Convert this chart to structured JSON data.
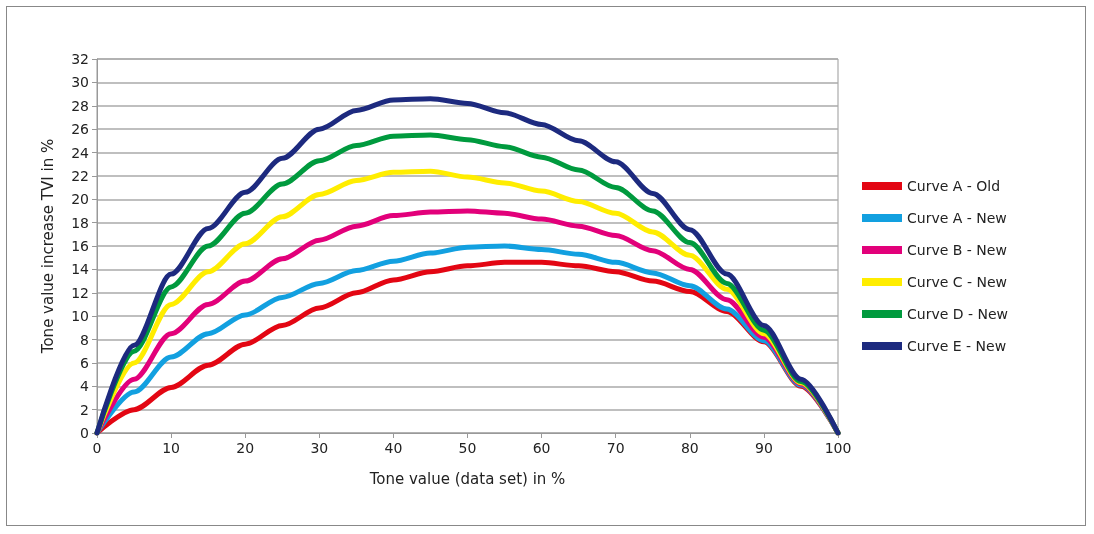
{
  "chart_data": {
    "type": "line",
    "xlabel": "Tone value (data set) in %",
    "ylabel": "Tone value increase TVI in %",
    "x": [
      0,
      5,
      10,
      15,
      20,
      25,
      30,
      35,
      40,
      45,
      50,
      55,
      60,
      65,
      70,
      75,
      80,
      85,
      90,
      95,
      100
    ],
    "series": [
      {
        "name": "Curve A - Old",
        "color": "#e30613",
        "values": [
          0,
          2,
          3.9,
          5.8,
          7.6,
          9.2,
          10.7,
          12,
          13.1,
          13.8,
          14.3,
          14.6,
          14.6,
          14.3,
          13.8,
          13,
          12.1,
          10.4,
          7.8,
          4,
          0
        ]
      },
      {
        "name": "Curve A - New",
        "color": "#12a0e0",
        "values": [
          0,
          3.5,
          6.5,
          8.5,
          10.1,
          11.6,
          12.8,
          13.9,
          14.7,
          15.4,
          15.9,
          16,
          15.7,
          15.3,
          14.6,
          13.7,
          12.6,
          10.6,
          7.9,
          4.1,
          0
        ]
      },
      {
        "name": "Curve B - New",
        "color": "#e2007a",
        "values": [
          0,
          4.6,
          8.5,
          11,
          13,
          14.9,
          16.5,
          17.7,
          18.6,
          18.9,
          19,
          18.8,
          18.3,
          17.7,
          16.9,
          15.6,
          14,
          11.4,
          8.2,
          4.2,
          0
        ]
      },
      {
        "name": "Curve C - New",
        "color": "#ffed00",
        "values": [
          0,
          6,
          11,
          13.8,
          16.2,
          18.5,
          20.4,
          21.6,
          22.3,
          22.4,
          21.9,
          21.4,
          20.7,
          19.8,
          18.8,
          17.2,
          15.2,
          12.3,
          8.5,
          4.3,
          0
        ]
      },
      {
        "name": "Curve D - New",
        "color": "#009a3e",
        "values": [
          0,
          7,
          12.5,
          16,
          18.8,
          21.3,
          23.3,
          24.6,
          25.4,
          25.5,
          25.1,
          24.5,
          23.6,
          22.5,
          21,
          19,
          16.3,
          12.8,
          8.8,
          4.4,
          0
        ]
      },
      {
        "name": "Curve E - New",
        "color": "#1d2a7f",
        "values": [
          0,
          7.5,
          13.6,
          17.5,
          20.6,
          23.5,
          26,
          27.6,
          28.5,
          28.6,
          28.2,
          27.4,
          26.4,
          25,
          23.2,
          20.5,
          17.4,
          13.6,
          9.2,
          4.6,
          0
        ]
      }
    ],
    "xlim": [
      0,
      100
    ],
    "xticks": [
      0,
      10,
      20,
      30,
      40,
      50,
      60,
      70,
      80,
      90,
      100
    ],
    "ylim": [
      0,
      32
    ],
    "yticks": [
      0,
      2,
      4,
      6,
      8,
      10,
      12,
      14,
      16,
      18,
      20,
      22,
      24,
      26,
      28,
      30,
      32
    ],
    "grid": "y",
    "legend": "right",
    "marker": "none",
    "line_style": "solid"
  }
}
